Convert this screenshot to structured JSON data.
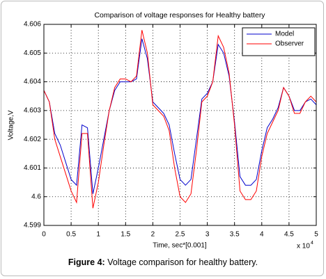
{
  "chart_data": {
    "type": "line",
    "title": "Comparison of voltage responses for Healthy battery",
    "x_label": "Time, sec*[0.001]",
    "y_label": "Voltage,V",
    "x_multiplier": "x 10",
    "x_multiplier_exponent": "4",
    "x": [
      0,
      0.1,
      0.2,
      0.3,
      0.4,
      0.5,
      0.6,
      0.7,
      0.8,
      0.9,
      1,
      1.1,
      1.2,
      1.3,
      1.4,
      1.5,
      1.6,
      1.7,
      1.8,
      1.9,
      2,
      2.1,
      2.2,
      2.3,
      2.4,
      2.5,
      2.6,
      2.7,
      2.8,
      2.9,
      3,
      3.1,
      3.2,
      3.3,
      3.4,
      3.5,
      3.6,
      3.7,
      3.8,
      3.9,
      4,
      4.1,
      4.2,
      4.3,
      4.4,
      4.5,
      4.6,
      4.7,
      4.8,
      4.9,
      5
    ],
    "series": [
      {
        "name": "Model",
        "color": "#0000cc",
        "values": [
          4.6037,
          4.6033,
          4.6022,
          4.6018,
          4.6012,
          4.6006,
          4.6004,
          4.6025,
          4.6024,
          4.6001,
          4.601,
          4.602,
          4.603,
          4.6037,
          4.604,
          4.604,
          4.604,
          4.6041,
          4.6055,
          4.6048,
          4.6033,
          4.6031,
          4.6029,
          4.6025,
          4.6015,
          4.6006,
          4.6004,
          4.6006,
          4.602,
          4.6034,
          4.6036,
          4.604,
          4.6053,
          4.605,
          4.6042,
          4.6026,
          4.6007,
          4.6004,
          4.6004,
          4.6006,
          4.6016,
          4.6024,
          4.6027,
          4.6031,
          4.6038,
          4.6035,
          4.603,
          4.603,
          4.6033,
          4.6034,
          4.6032
        ]
      },
      {
        "name": "Observer",
        "color": "#ff0000",
        "values": [
          4.6037,
          4.6033,
          4.602,
          4.6014,
          4.6008,
          4.6002,
          4.5998,
          4.6022,
          4.6022,
          4.5996,
          4.6005,
          4.6018,
          4.603,
          4.6038,
          4.6041,
          4.6041,
          4.604,
          4.6042,
          4.6058,
          4.605,
          4.6032,
          4.603,
          4.6028,
          4.6023,
          4.601,
          4.6,
          4.5998,
          4.6001,
          4.6016,
          4.6033,
          4.6035,
          4.604,
          4.6056,
          4.6052,
          4.6043,
          4.6025,
          4.6002,
          4.5999,
          4.5999,
          4.6002,
          4.6014,
          4.6022,
          4.6026,
          4.603,
          4.6038,
          4.6035,
          4.6029,
          4.6029,
          4.6033,
          4.6035,
          4.6033
        ]
      }
    ],
    "xlim": [
      0,
      5
    ],
    "xticks": [
      0,
      0.5,
      1,
      1.5,
      2,
      2.5,
      3,
      3.5,
      4,
      4.5,
      5
    ],
    "ylim": [
      4.599,
      4.606
    ],
    "yticks": [
      4.599,
      4.6,
      4.601,
      4.602,
      4.603,
      4.604,
      4.605,
      4.606
    ],
    "grid": true,
    "legend": "upper right"
  },
  "caption": {
    "label": "Figure 4:",
    "text": "Voltage comparison for healthy battery."
  }
}
